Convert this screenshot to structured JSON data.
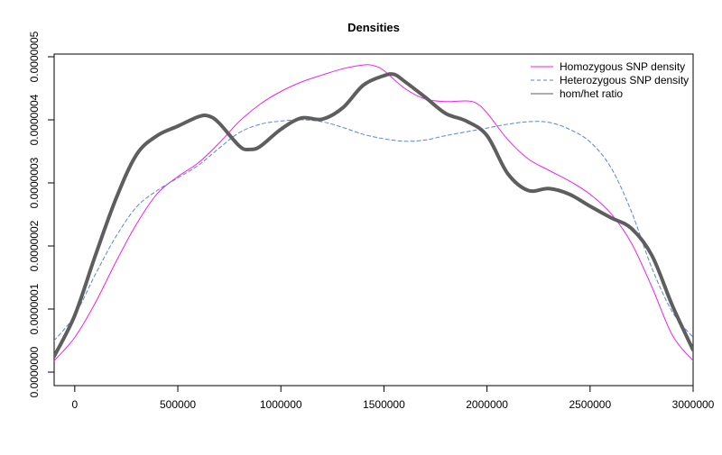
{
  "chart_data": {
    "type": "line",
    "title": "Densities",
    "xlabel": "",
    "ylabel": "",
    "xlim": [
      -100000,
      3000000
    ],
    "ylim": [
      0,
      5e-07
    ],
    "x_ticks": [
      0,
      500000,
      1000000,
      1500000,
      2000000,
      2500000,
      3000000
    ],
    "x_tick_labels": [
      "0",
      "500000",
      "1000000",
      "1500000",
      "2000000",
      "2500000",
      "3000000"
    ],
    "y_ticks": [
      0,
      1e-07,
      2e-07,
      3e-07,
      4e-07,
      5e-07
    ],
    "y_tick_labels": [
      "0.0000000",
      "0.0000001",
      "0.0000002",
      "0.0000003",
      "0.0000004",
      "0.0000005"
    ],
    "grid": false,
    "legend_position": "top-right",
    "legend_boxed": false,
    "series": [
      {
        "name": "Homozygous SNP density",
        "color": "#ee22ee",
        "dash": "solid",
        "width": 1,
        "x": [
          -100000,
          0,
          100000,
          200000,
          300000,
          400000,
          500000,
          600000,
          700000,
          800000,
          900000,
          1000000,
          1100000,
          1200000,
          1300000,
          1400000,
          1450000,
          1500000,
          1600000,
          1700000,
          1800000,
          1900000,
          1950000,
          2000000,
          2100000,
          2200000,
          2300000,
          2400000,
          2500000,
          2600000,
          2700000,
          2800000,
          2900000,
          3000000
        ],
        "y": [
          1.8e-08,
          5.5e-08,
          1.1e-07,
          1.75e-07,
          2.35e-07,
          2.83e-07,
          3.1e-07,
          3.32e-07,
          3.63e-07,
          3.98e-07,
          4.25e-07,
          4.45e-07,
          4.6e-07,
          4.71e-07,
          4.81e-07,
          4.87e-07,
          4.86e-07,
          4.78e-07,
          4.5e-07,
          4.33e-07,
          4.29e-07,
          4.3e-07,
          4.26e-07,
          4.11e-07,
          3.69e-07,
          3.38e-07,
          3.2e-07,
          3.03e-07,
          2.82e-07,
          2.52e-07,
          2.05e-07,
          1.35e-07,
          5.8e-08,
          1.8e-08
        ]
      },
      {
        "name": "Heterozygous SNP density",
        "color": "#5b82d9",
        "dash": "dashed",
        "width": 1,
        "x": [
          -100000,
          0,
          100000,
          200000,
          300000,
          400000,
          500000,
          600000,
          700000,
          800000,
          900000,
          1000000,
          1100000,
          1200000,
          1300000,
          1400000,
          1500000,
          1600000,
          1700000,
          1800000,
          1900000,
          2000000,
          2100000,
          2200000,
          2300000,
          2400000,
          2500000,
          2600000,
          2700000,
          2800000,
          2900000,
          3000000
        ],
        "y": [
          5e-08,
          9e-08,
          1.55e-07,
          2.15e-07,
          2.62e-07,
          2.88e-07,
          3.08e-07,
          3.28e-07,
          3.55e-07,
          3.8e-07,
          3.93e-07,
          3.98e-07,
          4e-07,
          3.97e-07,
          3.88e-07,
          3.77e-07,
          3.7e-07,
          3.66e-07,
          3.68e-07,
          3.75e-07,
          3.81e-07,
          3.87e-07,
          3.93e-07,
          3.97e-07,
          3.96e-07,
          3.85e-07,
          3.65e-07,
          3.25e-07,
          2.55e-07,
          1.65e-07,
          9.5e-08,
          5.5e-08
        ]
      },
      {
        "name": "hom/het ratio",
        "color": "#5e5e5e",
        "dash": "solid",
        "width": 4,
        "x": [
          -100000,
          0,
          100000,
          200000,
          300000,
          400000,
          500000,
          600000,
          650000,
          700000,
          800000,
          850000,
          900000,
          1000000,
          1100000,
          1200000,
          1300000,
          1400000,
          1500000,
          1550000,
          1600000,
          1700000,
          1800000,
          1900000,
          2000000,
          2100000,
          2200000,
          2300000,
          2400000,
          2500000,
          2600000,
          2700000,
          2800000,
          2900000,
          3000000
        ],
        "y": [
          2.5e-08,
          9e-08,
          1.85e-07,
          2.75e-07,
          3.45e-07,
          3.75e-07,
          3.9e-07,
          4.05e-07,
          4.06e-07,
          3.95e-07,
          3.58e-07,
          3.53e-07,
          3.58e-07,
          3.85e-07,
          4.03e-07,
          4.01e-07,
          4.19e-07,
          4.55e-07,
          4.7e-07,
          4.72e-07,
          4.61e-07,
          4.36e-07,
          4.1e-07,
          3.98e-07,
          3.75e-07,
          3.15e-07,
          2.88e-07,
          2.91e-07,
          2.82e-07,
          2.63e-07,
          2.45e-07,
          2.28e-07,
          1.85e-07,
          1.05e-07,
          3.5e-08
        ]
      }
    ]
  }
}
